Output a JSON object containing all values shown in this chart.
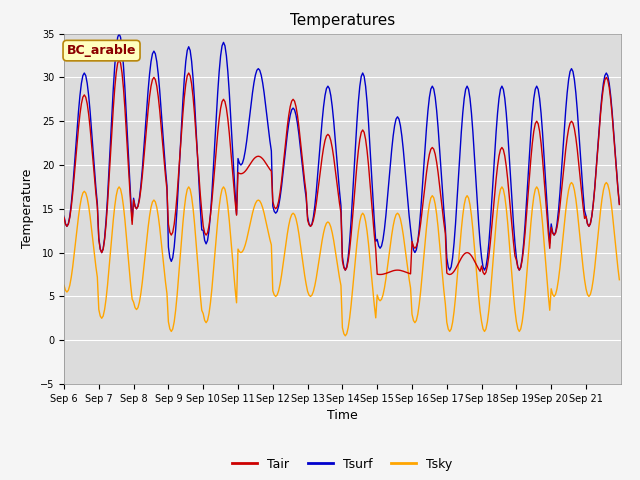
{
  "title": "Temperatures",
  "xlabel": "Time",
  "ylabel": "Temperature",
  "ylim": [
    -5,
    35
  ],
  "yticks": [
    -5,
    0,
    5,
    10,
    15,
    20,
    25,
    30,
    35
  ],
  "annotation": "BC_arable",
  "bg_color": "#dcdcdc",
  "fig_bg_color": "#f5f5f5",
  "line_colors": {
    "Tair": "#cc0000",
    "Tsurf": "#0000cc",
    "Tsky": "#ffa500"
  },
  "legend_labels": [
    "Tair",
    "Tsurf",
    "Tsky"
  ],
  "x_tick_labels": [
    "Sep 6",
    "Sep 7",
    "Sep 8",
    "Sep 9",
    "Sep 10",
    "Sep 11",
    "Sep 12",
    "Sep 13",
    "Sep 14",
    "Sep 15",
    "Sep 16",
    "Sep 17",
    "Sep 18",
    "Sep 19",
    "Sep 20",
    "Sep 21"
  ],
  "n_days": 16,
  "dt_hours": 1.0,
  "tair_peaks": [
    28,
    32,
    30,
    30.5,
    27.5,
    21,
    27.5,
    23.5,
    24,
    8,
    22,
    10,
    22,
    25,
    25,
    30
  ],
  "tair_mins": [
    13,
    10,
    15,
    12,
    12,
    19,
    15,
    13,
    8,
    7.5,
    10.5,
    7.5,
    7.5,
    8,
    12,
    13
  ],
  "tsurf_peaks": [
    30.5,
    35,
    33,
    33.5,
    34,
    31,
    26.5,
    29,
    30.5,
    25.5,
    29,
    29,
    29,
    29,
    31,
    30.5
  ],
  "tsurf_mins": [
    13,
    10,
    15,
    9,
    11,
    20,
    14.5,
    13,
    8,
    10.5,
    10,
    8,
    8,
    8,
    12,
    13
  ],
  "tsky_peaks": [
    17,
    17.5,
    16,
    17.5,
    17.5,
    16,
    14.5,
    13.5,
    14.5,
    14.5,
    16.5,
    16.5,
    17.5,
    17.5,
    18,
    18
  ],
  "tsky_mins": [
    5.5,
    2.5,
    3.5,
    1,
    2,
    10,
    5,
    5,
    0.5,
    4.5,
    2,
    1,
    1,
    1,
    5,
    5
  ],
  "linewidth": 1.0,
  "title_fontsize": 11,
  "axis_fontsize": 9,
  "tick_fontsize": 7,
  "legend_fontsize": 9
}
